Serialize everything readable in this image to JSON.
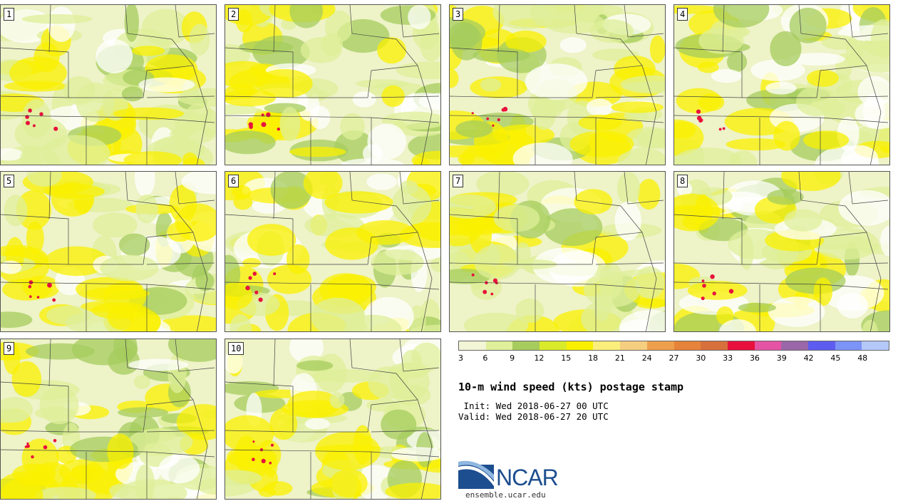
{
  "title": "10-m wind speed (kts) postage stamp",
  "init": " Init: Wed 2018-06-27 00 UTC",
  "valid": "Valid: Wed 2018-06-27 20 UTC",
  "logo": {
    "name": "NCAR",
    "url": "ensemble.ucar.edu"
  },
  "members": [
    "1",
    "2",
    "3",
    "4",
    "5",
    "6",
    "7",
    "8",
    "9",
    "10"
  ],
  "legend": {
    "ticks": [
      "3",
      "6",
      "9",
      "12",
      "15",
      "18",
      "21",
      "24",
      "27",
      "30",
      "33",
      "36",
      "39",
      "42",
      "45",
      "48"
    ],
    "colors": [
      "#f2f5d6",
      "#dfef9a",
      "#a6cc5e",
      "#d9ea2a",
      "#f9f000",
      "#fbef7c",
      "#f6ce80",
      "#ee9f4c",
      "#e6833a",
      "#d8703c",
      "#e8103c",
      "#e453a4",
      "#9a68a8",
      "#5d5cf0",
      "#7c93f7",
      "#b5c8fa"
    ]
  }
}
